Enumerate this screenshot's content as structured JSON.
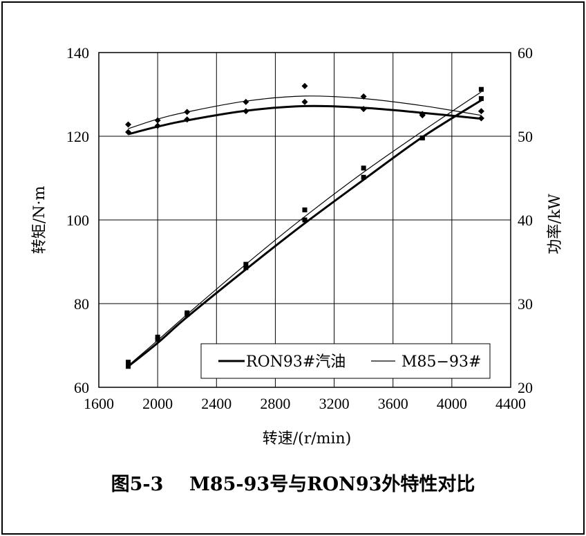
{
  "chart_data": {
    "type": "line",
    "caption": "图5-3    M85-93号与RON93外特性对比",
    "xlabel": "转速/(r/min)",
    "ylabel_left": "转矩/N·m",
    "ylabel_right": "功率/kW",
    "x_ticks": [
      "1600",
      "2000",
      "2400",
      "2800",
      "3200",
      "3600",
      "4000",
      "4400"
    ],
    "y_left_ticks": [
      "60",
      "80",
      "100",
      "120",
      "140"
    ],
    "y_right_ticks": [
      "20",
      "30",
      "40",
      "50",
      "60"
    ],
    "xlim": [
      1600,
      4400
    ],
    "ylim_left": [
      60,
      140
    ],
    "ylim_right": [
      20,
      60
    ],
    "grid": true,
    "legend_position": "bottom-right",
    "legend": [
      "RON93#汽油",
      "M85−93#"
    ],
    "series": [
      {
        "name": "RON93#汽油",
        "quantity": "torque",
        "axis": "left",
        "points": [
          [
            1800,
            121.0
          ],
          [
            2000,
            122.5
          ],
          [
            2200,
            124.0
          ],
          [
            2600,
            126.0
          ],
          [
            3000,
            128.2
          ],
          [
            3400,
            126.5
          ],
          [
            3800,
            125.0
          ],
          [
            4200,
            124.3
          ]
        ],
        "fit": [
          [
            1800,
            120.5
          ],
          [
            2000,
            122.3
          ],
          [
            2200,
            123.8
          ],
          [
            2600,
            126.1
          ],
          [
            3000,
            127.2
          ],
          [
            3400,
            126.8
          ],
          [
            3800,
            125.6
          ],
          [
            4200,
            124.2
          ]
        ]
      },
      {
        "name": "M85−93#",
        "quantity": "torque",
        "axis": "left",
        "points": [
          [
            1800,
            122.8
          ],
          [
            2000,
            123.8
          ],
          [
            2200,
            125.8
          ],
          [
            2600,
            128.2
          ],
          [
            3000,
            132.0
          ],
          [
            3400,
            129.5
          ],
          [
            3800,
            125.3
          ],
          [
            4200,
            126.0
          ]
        ],
        "fit": [
          [
            1800,
            121.8
          ],
          [
            2000,
            124.1
          ],
          [
            2200,
            125.8
          ],
          [
            2600,
            128.4
          ],
          [
            3000,
            129.6
          ],
          [
            3400,
            129.0
          ],
          [
            3800,
            127.3
          ],
          [
            4200,
            125.0
          ]
        ]
      },
      {
        "name": "RON93#汽油",
        "quantity": "power",
        "axis": "right",
        "points": [
          [
            1800,
            22.5
          ],
          [
            2000,
            25.7
          ],
          [
            2200,
            28.7
          ],
          [
            2600,
            34.3
          ],
          [
            3000,
            40.0
          ],
          [
            3400,
            45.1
          ],
          [
            3800,
            49.8
          ],
          [
            4200,
            54.5
          ]
        ],
        "fit": [
          [
            1800,
            22.5
          ],
          [
            2000,
            25.3
          ],
          [
            2200,
            28.4
          ],
          [
            2600,
            34.1
          ],
          [
            3000,
            39.6
          ],
          [
            3400,
            44.8
          ],
          [
            3800,
            49.9
          ],
          [
            4200,
            54.3
          ]
        ]
      },
      {
        "name": "M85−93#",
        "quantity": "power",
        "axis": "right",
        "points": [
          [
            1800,
            23.0
          ],
          [
            2000,
            26.0
          ],
          [
            2200,
            28.9
          ],
          [
            2600,
            34.7
          ],
          [
            3000,
            41.2
          ],
          [
            3400,
            46.2
          ],
          [
            3800,
            49.8
          ],
          [
            4200,
            55.6
          ]
        ],
        "fit": [
          [
            1800,
            22.6
          ],
          [
            2000,
            25.6
          ],
          [
            2200,
            28.7
          ],
          [
            2600,
            34.7
          ],
          [
            3000,
            40.4
          ],
          [
            3400,
            45.7
          ],
          [
            3800,
            50.6
          ],
          [
            4200,
            55.3
          ]
        ]
      }
    ]
  }
}
